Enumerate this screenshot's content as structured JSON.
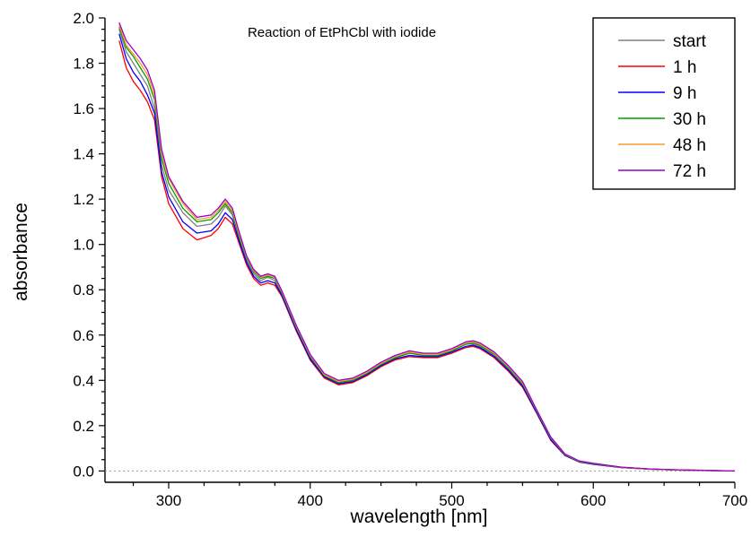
{
  "chart_data": {
    "type": "line",
    "title": "Reaction of EtPhCbl with iodide",
    "xlabel": "wavelength [nm]",
    "ylabel": "absorbance",
    "xlim": [
      255,
      700
    ],
    "ylim": [
      -0.05,
      2.0
    ],
    "xticks": [
      300,
      400,
      500,
      600,
      700
    ],
    "yticks": [
      0.0,
      0.2,
      0.4,
      0.6,
      0.8,
      1.0,
      1.2,
      1.4,
      1.6,
      1.8,
      2.0
    ],
    "xtick_labels": [
      "300",
      "400",
      "500",
      "600",
      "700"
    ],
    "ytick_labels": [
      "0.0",
      "0.2",
      "0.4",
      "0.6",
      "0.8",
      "1.0",
      "1.2",
      "1.4",
      "1.6",
      "1.8",
      "2.0"
    ],
    "grid": false,
    "baseline": 0.0,
    "legend_position": "top-right",
    "x": [
      265,
      270,
      275,
      280,
      285,
      290,
      295,
      300,
      310,
      320,
      330,
      335,
      340,
      345,
      350,
      355,
      360,
      365,
      370,
      375,
      380,
      390,
      400,
      410,
      420,
      430,
      440,
      450,
      460,
      470,
      480,
      490,
      500,
      510,
      515,
      520,
      530,
      540,
      550,
      560,
      570,
      580,
      590,
      600,
      620,
      640,
      660,
      680,
      700
    ],
    "series": [
      {
        "name": "start",
        "color": "#808080",
        "values": [
          1.95,
          1.85,
          1.8,
          1.75,
          1.7,
          1.6,
          1.35,
          1.24,
          1.14,
          1.08,
          1.09,
          1.12,
          1.17,
          1.13,
          1.02,
          0.93,
          0.87,
          0.84,
          0.855,
          0.84,
          0.78,
          0.63,
          0.5,
          0.42,
          0.39,
          0.4,
          0.43,
          0.47,
          0.5,
          0.52,
          0.51,
          0.51,
          0.53,
          0.56,
          0.56,
          0.55,
          0.51,
          0.45,
          0.38,
          0.26,
          0.14,
          0.07,
          0.04,
          0.03,
          0.015,
          0.008,
          0.004,
          0.002,
          0.0
        ]
      },
      {
        "name": "1 h",
        "color": "#ff0000",
        "values": [
          1.9,
          1.78,
          1.72,
          1.68,
          1.63,
          1.55,
          1.3,
          1.18,
          1.07,
          1.02,
          1.04,
          1.07,
          1.12,
          1.09,
          1.0,
          0.91,
          0.85,
          0.82,
          0.83,
          0.82,
          0.77,
          0.62,
          0.49,
          0.41,
          0.38,
          0.39,
          0.42,
          0.46,
          0.49,
          0.505,
          0.5,
          0.5,
          0.52,
          0.545,
          0.55,
          0.54,
          0.5,
          0.44,
          0.37,
          0.255,
          0.135,
          0.068,
          0.04,
          0.03,
          0.015,
          0.008,
          0.005,
          0.003,
          0.0
        ]
      },
      {
        "name": "9 h",
        "color": "#0000ff",
        "values": [
          1.93,
          1.82,
          1.76,
          1.72,
          1.66,
          1.58,
          1.32,
          1.21,
          1.1,
          1.05,
          1.06,
          1.09,
          1.14,
          1.11,
          1.01,
          0.92,
          0.86,
          0.83,
          0.84,
          0.83,
          0.775,
          0.625,
          0.495,
          0.415,
          0.385,
          0.395,
          0.425,
          0.465,
          0.495,
          0.51,
          0.505,
          0.505,
          0.525,
          0.55,
          0.555,
          0.545,
          0.505,
          0.445,
          0.375,
          0.258,
          0.138,
          0.069,
          0.04,
          0.03,
          0.015,
          0.008,
          0.004,
          0.002,
          0.0
        ]
      },
      {
        "name": "30 h",
        "color": "#00a000",
        "values": [
          1.96,
          1.87,
          1.83,
          1.78,
          1.73,
          1.64,
          1.38,
          1.27,
          1.16,
          1.1,
          1.11,
          1.14,
          1.18,
          1.14,
          1.03,
          0.94,
          0.88,
          0.85,
          0.86,
          0.85,
          0.785,
          0.635,
          0.505,
          0.42,
          0.39,
          0.4,
          0.43,
          0.47,
          0.5,
          0.52,
          0.51,
          0.51,
          0.53,
          0.56,
          0.565,
          0.555,
          0.515,
          0.455,
          0.385,
          0.265,
          0.145,
          0.072,
          0.042,
          0.032,
          0.016,
          0.008,
          0.004,
          0.002,
          0.0
        ]
      },
      {
        "name": "48 h",
        "color": "#ff9933",
        "values": [
          1.97,
          1.88,
          1.84,
          1.8,
          1.75,
          1.66,
          1.4,
          1.29,
          1.18,
          1.11,
          1.12,
          1.15,
          1.19,
          1.15,
          1.04,
          0.945,
          0.885,
          0.855,
          0.865,
          0.855,
          0.79,
          0.64,
          0.51,
          0.425,
          0.395,
          0.405,
          0.435,
          0.475,
          0.505,
          0.525,
          0.515,
          0.515,
          0.535,
          0.565,
          0.57,
          0.56,
          0.52,
          0.46,
          0.39,
          0.268,
          0.148,
          0.074,
          0.043,
          0.033,
          0.016,
          0.008,
          0.004,
          0.002,
          0.0
        ]
      },
      {
        "name": "72 h",
        "color": "#9900cc",
        "values": [
          1.98,
          1.9,
          1.86,
          1.82,
          1.77,
          1.68,
          1.42,
          1.3,
          1.19,
          1.12,
          1.13,
          1.16,
          1.2,
          1.16,
          1.05,
          0.95,
          0.89,
          0.86,
          0.87,
          0.86,
          0.795,
          0.645,
          0.515,
          0.43,
          0.4,
          0.41,
          0.44,
          0.48,
          0.51,
          0.53,
          0.52,
          0.52,
          0.54,
          0.57,
          0.575,
          0.565,
          0.525,
          0.465,
          0.395,
          0.27,
          0.15,
          0.075,
          0.044,
          0.034,
          0.017,
          0.009,
          0.005,
          0.002,
          0.0
        ]
      }
    ]
  }
}
